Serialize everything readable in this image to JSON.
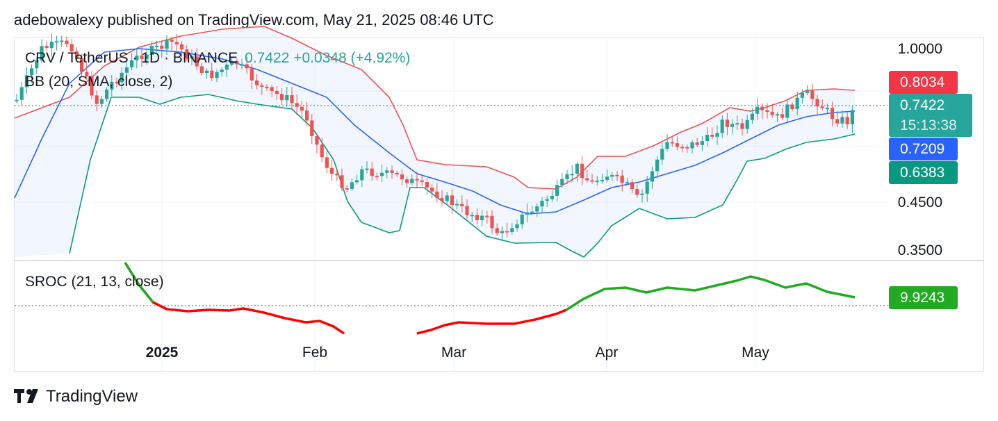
{
  "header": {
    "text": "adebowalexy published on TradingView.com, May 21, 2025 08:46 UTC"
  },
  "legend": {
    "symbol": "CRV / TetherUS · 1D · BINANCE",
    "price": "0.7422",
    "change": "+0.0348 (+4.92%)",
    "bb": "BB (20, SMA, close, 2)",
    "sroc": "SROC (21, 13, close)"
  },
  "price_axis": {
    "labels": [
      "1.0000",
      "0.4500",
      "0.3500"
    ]
  },
  "price_tags": {
    "upper": "0.8034",
    "last": "0.7422",
    "countdown": "15:13:38",
    "basis": "0.7209",
    "lower": "0.6383",
    "sroc": "9.9243"
  },
  "time_axis": {
    "labels": [
      "2025",
      "Feb",
      "Mar",
      "Apr",
      "May"
    ]
  },
  "footer": {
    "brand": "TradingView"
  },
  "colors": {
    "up": "#26a69a",
    "down": "#ef5350",
    "bb_upper": "#ef5350",
    "bb_basis": "#2962ff",
    "bb_lower": "#089981",
    "sroc_up": "#22ab22",
    "sroc_down": "#ff0000"
  },
  "chart_data": [
    {
      "type": "line",
      "title": "CRV / TetherUS · 1D · BINANCE",
      "x": [
        "2024-12-08",
        "2024-12-16",
        "2024-12-24",
        "2025-01-01",
        "2025-01-08",
        "2025-01-16",
        "2025-01-24",
        "2025-02-01",
        "2025-02-08",
        "2025-02-16",
        "2025-02-24",
        "2025-03-01",
        "2025-03-08",
        "2025-03-16",
        "2025-03-24",
        "2025-04-01",
        "2025-04-08",
        "2025-04-16",
        "2025-04-24",
        "2025-05-01",
        "2025-05-08",
        "2025-05-16",
        "2025-05-21"
      ],
      "ylim": [
        0.34,
        1.1
      ],
      "yscale": "log",
      "series": [
        {
          "name": "BB (20, SMA, close, 2)",
          "values": [
            0.45,
            0.62,
            0.9,
            1.0,
            1.05,
            1.04,
            0.98,
            0.95,
            0.88,
            0.74,
            0.66,
            0.58,
            0.51,
            0.48,
            0.5,
            0.52,
            0.5,
            0.55,
            0.59,
            0.65,
            0.69,
            0.72,
            0.7209
          ]
        }
      ]
    },
    {
      "type": "line",
      "title": "SROC (21, 13, close)",
      "x": [
        "2025-01-01",
        "2025-01-16",
        "2025-02-01",
        "2025-02-16",
        "2025-03-01",
        "2025-03-16",
        "2025-03-24",
        "2025-04-01",
        "2025-04-16",
        "2025-05-01",
        "2025-05-08",
        "2025-05-21"
      ],
      "series": [
        {
          "name": "SROC (21, 13, close)",
          "values": [
            -1.5,
            -2.5,
            -6.0,
            -11.0,
            -8.0,
            -6.0,
            0.0,
            7.5,
            8.5,
            12.5,
            10.5,
            9.9243
          ]
        }
      ]
    }
  ]
}
